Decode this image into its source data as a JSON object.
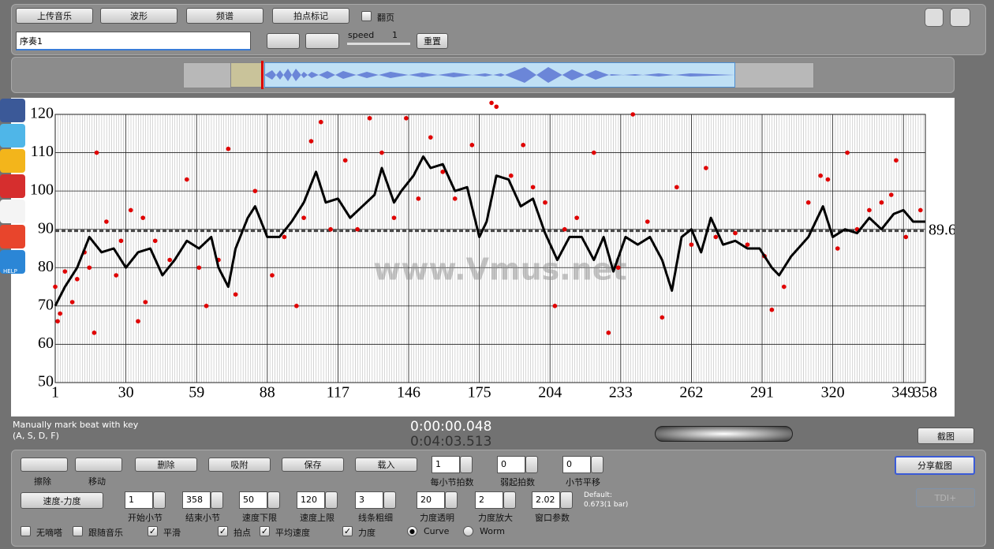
{
  "toolbar": {
    "buttons": [
      "上传音乐",
      "波形",
      "频谱",
      "拍点标记"
    ],
    "page_turn": {
      "label": "翻页",
      "checked": false
    },
    "track_name": "序奏1",
    "speed_label": "speed",
    "speed_value": 1,
    "reset": "重置"
  },
  "status": {
    "hint_line1": "Manually mark beat with key",
    "hint_line2": "(A, S, D, F)",
    "current_time": "0:00:00.048",
    "total_time": "0:04:03.513",
    "screenshot": "截图"
  },
  "chart_data": {
    "type": "line",
    "watermark": "www.Vmus.net",
    "xlim": [
      1,
      358
    ],
    "xticks": [
      1,
      30,
      59,
      88,
      117,
      146,
      175,
      204,
      233,
      262,
      291,
      320,
      349,
      358
    ],
    "ylim": [
      50,
      120
    ],
    "yticks": [
      50,
      60,
      70,
      80,
      90,
      100,
      110,
      120
    ],
    "grid": true,
    "minor_xgrid": true,
    "mean": 89.6,
    "mean_color": "#444444",
    "x": [
      1,
      5,
      10,
      15,
      20,
      25,
      30,
      35,
      40,
      45,
      50,
      55,
      60,
      65,
      68,
      72,
      75,
      80,
      83,
      88,
      93,
      98,
      103,
      108,
      112,
      117,
      122,
      127,
      132,
      135,
      140,
      143,
      148,
      152,
      155,
      160,
      165,
      170,
      175,
      178,
      182,
      187,
      192,
      197,
      202,
      207,
      212,
      217,
      222,
      226,
      230,
      235,
      240,
      245,
      250,
      254,
      258,
      262,
      266,
      270,
      275,
      280,
      285,
      290,
      295,
      298,
      303,
      310,
      316,
      320,
      325,
      330,
      335,
      340,
      345,
      349,
      353,
      358
    ],
    "series": [
      {
        "color": "#000000",
        "values": [
          70,
          75,
          80,
          88,
          84,
          85,
          80,
          84,
          85,
          78,
          82,
          87,
          85,
          88,
          80,
          75,
          85,
          93,
          96,
          88,
          88,
          92,
          97,
          105,
          97,
          98,
          93,
          96,
          99,
          106,
          97,
          100,
          104,
          109,
          106,
          107,
          100,
          101,
          88,
          92,
          104,
          103,
          96,
          98,
          89,
          82,
          88,
          88,
          82,
          88,
          79,
          88,
          86,
          88,
          82,
          74,
          88,
          90,
          84,
          93,
          86,
          87,
          85,
          85,
          80,
          78,
          83,
          88,
          96,
          88,
          90,
          89,
          93,
          90,
          94,
          95,
          92,
          92
        ]
      }
    ],
    "points": {
      "color": "#e00000",
      "x": [
        1,
        2,
        3,
        5,
        8,
        10,
        13,
        15,
        17,
        18,
        22,
        26,
        28,
        32,
        35,
        37,
        38,
        42,
        48,
        55,
        60,
        63,
        68,
        72,
        75,
        83,
        90,
        95,
        100,
        103,
        106,
        110,
        114,
        120,
        125,
        130,
        135,
        140,
        145,
        150,
        155,
        160,
        165,
        172,
        180,
        182,
        188,
        193,
        197,
        202,
        206,
        210,
        215,
        222,
        228,
        232,
        238,
        244,
        250,
        256,
        262,
        268,
        272,
        280,
        285,
        292,
        295,
        300,
        310,
        315,
        318,
        322,
        326,
        330,
        335,
        340,
        344,
        346,
        350,
        356
      ],
      "y": [
        75,
        66,
        68,
        79,
        71,
        77,
        84,
        80,
        63,
        110,
        92,
        78,
        87,
        95,
        66,
        93,
        71,
        87,
        82,
        103,
        80,
        70,
        82,
        111,
        73,
        100,
        78,
        88,
        70,
        93,
        113,
        118,
        90,
        108,
        90,
        119,
        110,
        93,
        119,
        98,
        114,
        105,
        98,
        112,
        123,
        122,
        104,
        112,
        101,
        97,
        70,
        90,
        93,
        110,
        63,
        80,
        120,
        92,
        67,
        101,
        86,
        106,
        88,
        89,
        86,
        83,
        69,
        75,
        97,
        104,
        103,
        85,
        110,
        90,
        95,
        97,
        99,
        108,
        88,
        95
      ]
    }
  },
  "controls": {
    "tools": [
      "擦除",
      "移动"
    ],
    "buttons": [
      "删除",
      "吸附",
      "保存",
      "载入"
    ],
    "spinners_row1": [
      {
        "value": 1,
        "label": "每小节拍数"
      },
      {
        "value": 0,
        "label": "弱起拍数"
      },
      {
        "value": 0,
        "label": "小节平移"
      }
    ],
    "mode_button": "速度-力度",
    "spinners_row2": [
      {
        "value": 1,
        "label": "开始小节"
      },
      {
        "value": 358,
        "label": "结束小节"
      },
      {
        "value": 50,
        "label": "速度下限"
      },
      {
        "value": 120,
        "label": "速度上限"
      },
      {
        "value": 3,
        "label": "线条粗细"
      },
      {
        "value": 20,
        "label": "力度透明"
      },
      {
        "value": 2,
        "label": "力度放大"
      },
      {
        "value": 2.02,
        "label": "窗口参数"
      }
    ],
    "default_note_1": "Default:",
    "default_note_2": "0.673(1 bar)",
    "checkboxes": [
      {
        "label": "无嘀嗒",
        "checked": false
      },
      {
        "label": "跟随音乐",
        "checked": false
      },
      {
        "label": "平滑",
        "checked": true
      },
      {
        "label": "拍点",
        "checked": true
      },
      {
        "label": "平均速度",
        "checked": true
      },
      {
        "label": "力度",
        "checked": true
      }
    ],
    "radios": [
      {
        "label": "Curve",
        "selected": true
      },
      {
        "label": "Worm",
        "selected": false
      }
    ],
    "share": "分享截图",
    "tdi": "TDI+"
  },
  "sidebar": {
    "help": "HELP"
  }
}
